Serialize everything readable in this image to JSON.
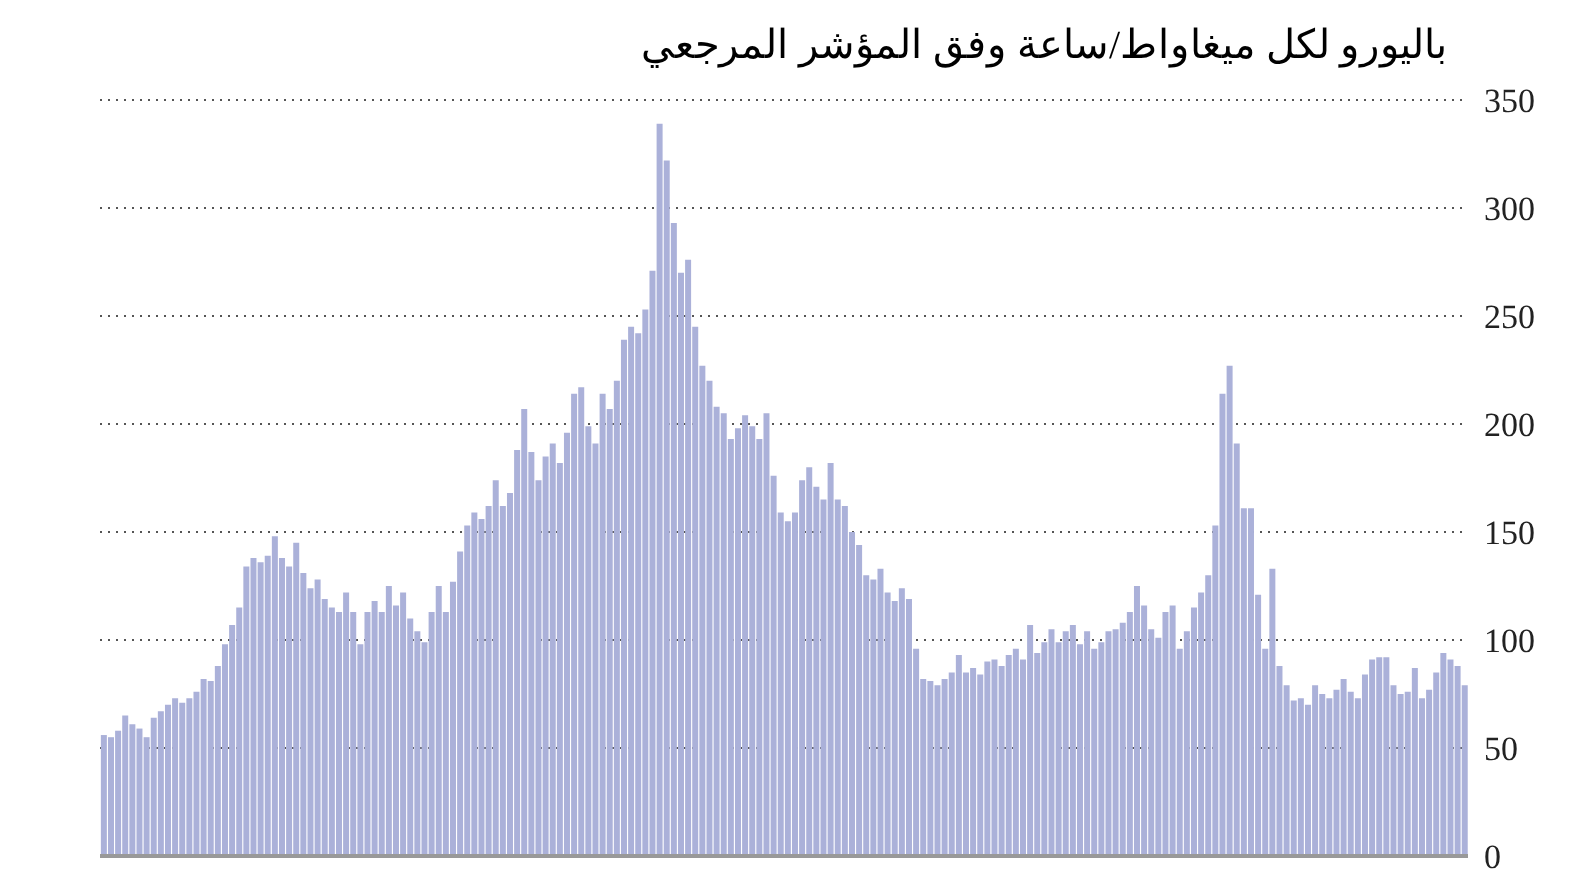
{
  "chart_data": {
    "type": "bar",
    "title": "باليورو لكل ميغاواط/ساعة وفق المؤشر المرجعي",
    "categories": [
      null,
      null,
      null,
      null,
      null,
      null,
      null,
      null,
      null,
      null,
      null,
      null,
      null,
      null,
      null,
      null,
      null,
      null,
      null,
      null,
      null,
      null,
      null,
      null,
      null,
      null,
      null,
      null,
      null,
      null,
      null,
      null,
      null,
      null,
      null,
      null,
      null,
      null,
      null,
      null,
      null,
      null,
      null,
      null,
      null,
      null,
      null,
      null,
      null,
      null,
      null,
      null,
      null,
      null,
      null,
      null,
      null,
      null,
      null,
      null,
      null,
      null,
      null,
      null,
      null,
      null,
      null,
      null,
      null,
      null,
      null,
      null,
      null,
      null,
      null,
      null,
      null,
      null,
      null,
      null,
      null,
      null,
      null,
      null,
      null,
      null,
      null,
      null,
      null,
      null,
      null,
      null,
      null,
      null,
      null,
      null,
      null,
      null,
      null,
      null,
      null,
      null,
      null,
      null,
      null,
      null,
      null,
      null,
      null,
      null,
      null,
      null,
      null,
      null,
      null,
      null,
      null,
      null,
      null,
      null,
      null,
      null,
      null,
      null,
      null,
      null,
      null,
      null,
      null,
      null,
      null,
      null,
      null,
      null,
      null,
      null,
      null,
      null,
      null,
      null,
      null,
      null,
      null,
      null,
      null,
      null,
      null,
      null,
      null,
      null,
      null,
      null,
      null,
      null,
      null,
      null,
      null,
      null,
      null,
      null,
      null,
      null,
      null,
      null,
      null,
      null,
      null,
      null,
      null,
      null,
      null,
      null,
      null,
      null,
      null,
      null,
      null,
      null,
      null,
      null,
      null,
      null,
      null,
      null,
      null,
      null,
      null,
      null,
      null,
      null,
      null,
      null
    ],
    "values": [
      56,
      55,
      58,
      65,
      61,
      59,
      55,
      64,
      67,
      70,
      73,
      71,
      73,
      76,
      82,
      81,
      88,
      98,
      107,
      115,
      134,
      138,
      136,
      139,
      148,
      138,
      134,
      145,
      131,
      124,
      128,
      119,
      115,
      113,
      122,
      113,
      98,
      113,
      118,
      113,
      125,
      116,
      122,
      110,
      104,
      99,
      113,
      125,
      113,
      127,
      141,
      153,
      159,
      156,
      162,
      174,
      162,
      168,
      188,
      207,
      187,
      174,
      185,
      191,
      182,
      196,
      214,
      217,
      199,
      191,
      214,
      207,
      220,
      239,
      245,
      242,
      253,
      271,
      339,
      322,
      293,
      270,
      276,
      245,
      227,
      220,
      208,
      205,
      193,
      198,
      204,
      199,
      193,
      205,
      176,
      159,
      155,
      159,
      174,
      180,
      171,
      165,
      182,
      165,
      162,
      150,
      144,
      130,
      128,
      133,
      122,
      118,
      124,
      119,
      96,
      82,
      81,
      79,
      82,
      85,
      93,
      85,
      87,
      84,
      90,
      91,
      88,
      93,
      96,
      91,
      107,
      94,
      99,
      105,
      99,
      104,
      107,
      98,
      104,
      96,
      99,
      104,
      105,
      108,
      113,
      125,
      116,
      105,
      101,
      113,
      116,
      96,
      104,
      115,
      122,
      130,
      153,
      214,
      227,
      191,
      161,
      161,
      121,
      96,
      133,
      88,
      79,
      72,
      73,
      70,
      79,
      75,
      73,
      77,
      82,
      76,
      73,
      84,
      91,
      92,
      92,
      79,
      75,
      76,
      87,
      73,
      77,
      85,
      94,
      91,
      88,
      79
    ],
    "color": "#abb1d9",
    "ylim": [
      0,
      350
    ],
    "yticks": [
      0,
      50,
      100,
      150,
      200,
      250,
      300,
      350
    ],
    "grid": "y"
  }
}
